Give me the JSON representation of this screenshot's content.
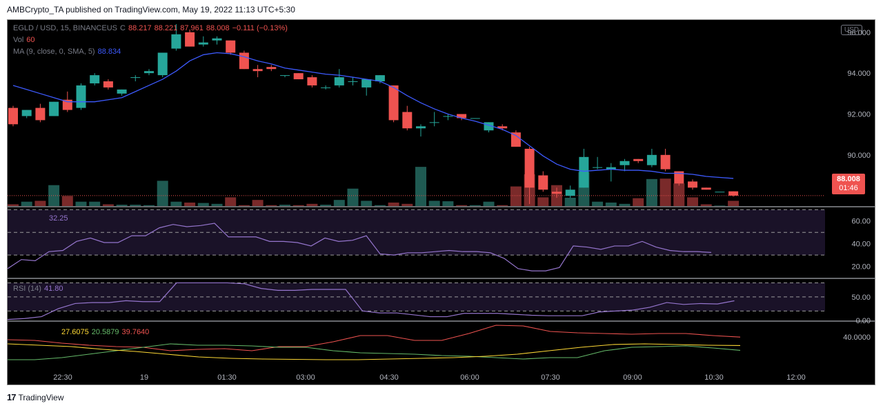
{
  "header": {
    "publisher_line": "AMBCrypto_TA published on TradingView.com, May 19, 2022 11:13 UTC+5:30"
  },
  "footer": {
    "brand": "TradingView",
    "logo_glyph": "17"
  },
  "colors": {
    "up": "#26a69a",
    "down": "#ef5350",
    "ma": "#3d5afe",
    "rsi": "#9575cd",
    "adx": "#fdd835",
    "plus_di": "#66bb6a",
    "minus_di": "#ef5350"
  },
  "main_pane": {
    "legend": {
      "symbol": "EGLD / USD, 15, BINANCEUS",
      "ohlc_label": "C",
      "open": "88.217",
      "high": "88.221",
      "low": "87.961",
      "close": "88.008",
      "change": "−0.111 (−0.13%)",
      "vol_label": "Vol",
      "vol_value": "60",
      "ma_label": "MA (9, close, 0, SMA, 5)",
      "ma_value": "88.834"
    },
    "currency_button": "USD",
    "price_ticks": [
      "96.000",
      "94.000",
      "92.000",
      "90.000"
    ],
    "last_price": "88.008",
    "countdown": "01:46"
  },
  "rsi_pane": {
    "legend_value": "32.25",
    "ticks": [
      "60.00",
      "40.00",
      "20.00"
    ]
  },
  "stoch_pane": {
    "legend": "RSI (14)",
    "legend_value": "41.80",
    "ticks": [
      "50.00",
      "0.00"
    ]
  },
  "dmi_pane": {
    "values": [
      "27.6075",
      "20.5879",
      "39.7640"
    ],
    "tick": "40.0000"
  },
  "time_axis": [
    "22:30",
    "19",
    "01:30",
    "03:00",
    "04:30",
    "06:00",
    "07:30",
    "09:00",
    "10:30",
    "12:00"
  ],
  "chart_data": {
    "type": "candlestick",
    "title": "EGLD / USD, 15, BINANCEUS",
    "ylim": [
      87.5,
      96.6
    ],
    "candles": [
      {
        "o": 92.3,
        "h": 92.4,
        "l": 91.4,
        "c": 91.5
      },
      {
        "o": 91.9,
        "h": 92.2,
        "l": 91.8,
        "c": 92.2
      },
      {
        "o": 92.3,
        "h": 92.5,
        "l": 91.6,
        "c": 91.7
      },
      {
        "o": 91.9,
        "h": 92.6,
        "l": 91.9,
        "c": 92.6
      },
      {
        "o": 92.7,
        "h": 93.1,
        "l": 92.1,
        "c": 92.2
      },
      {
        "o": 92.3,
        "h": 93.5,
        "l": 92.2,
        "c": 93.4
      },
      {
        "o": 93.5,
        "h": 94.0,
        "l": 93.4,
        "c": 93.9
      },
      {
        "o": 93.6,
        "h": 93.7,
        "l": 93.2,
        "c": 93.3
      },
      {
        "o": 93.0,
        "h": 93.2,
        "l": 92.9,
        "c": 93.2
      },
      {
        "o": 93.8,
        "h": 93.9,
        "l": 93.6,
        "c": 93.8
      },
      {
        "o": 94.0,
        "h": 94.2,
        "l": 93.9,
        "c": 94.1
      },
      {
        "o": 93.9,
        "h": 95.0,
        "l": 93.8,
        "c": 95.0
      },
      {
        "o": 95.2,
        "h": 96.4,
        "l": 95.1,
        "c": 95.9
      },
      {
        "o": 96.0,
        "h": 96.1,
        "l": 95.3,
        "c": 95.3
      },
      {
        "o": 95.4,
        "h": 95.8,
        "l": 95.3,
        "c": 95.5
      },
      {
        "o": 95.6,
        "h": 95.8,
        "l": 95.4,
        "c": 95.7
      },
      {
        "o": 95.6,
        "h": 95.6,
        "l": 94.9,
        "c": 95.0
      },
      {
        "o": 95.0,
        "h": 95.1,
        "l": 94.2,
        "c": 94.2
      },
      {
        "o": 94.2,
        "h": 94.4,
        "l": 93.8,
        "c": 94.1
      },
      {
        "o": 94.3,
        "h": 94.4,
        "l": 94.1,
        "c": 94.2
      },
      {
        "o": 93.9,
        "h": 93.9,
        "l": 93.8,
        "c": 93.9
      },
      {
        "o": 94.0,
        "h": 94.0,
        "l": 93.7,
        "c": 93.7
      },
      {
        "o": 93.8,
        "h": 93.9,
        "l": 93.3,
        "c": 93.4
      },
      {
        "o": 93.3,
        "h": 93.4,
        "l": 93.2,
        "c": 93.3
      },
      {
        "o": 93.4,
        "h": 94.2,
        "l": 93.3,
        "c": 93.8
      },
      {
        "o": 93.6,
        "h": 93.8,
        "l": 93.4,
        "c": 93.6
      },
      {
        "o": 93.3,
        "h": 93.7,
        "l": 92.9,
        "c": 93.7
      },
      {
        "o": 93.6,
        "h": 93.9,
        "l": 93.5,
        "c": 93.9
      },
      {
        "o": 93.4,
        "h": 93.4,
        "l": 91.6,
        "c": 91.7
      },
      {
        "o": 92.1,
        "h": 92.4,
        "l": 91.2,
        "c": 91.3
      },
      {
        "o": 91.3,
        "h": 91.5,
        "l": 90.9,
        "c": 91.4
      },
      {
        "o": 91.6,
        "h": 92.1,
        "l": 91.4,
        "c": 91.6
      },
      {
        "o": 91.9,
        "h": 92.0,
        "l": 91.7,
        "c": 91.9
      },
      {
        "o": 92.0,
        "h": 92.0,
        "l": 91.7,
        "c": 91.8
      },
      {
        "o": 91.8,
        "h": 91.8,
        "l": 91.8,
        "c": 91.8
      },
      {
        "o": 91.2,
        "h": 91.6,
        "l": 91.1,
        "c": 91.6
      },
      {
        "o": 91.4,
        "h": 91.5,
        "l": 91.2,
        "c": 91.3
      },
      {
        "o": 91.1,
        "h": 91.2,
        "l": 90.4,
        "c": 90.4
      },
      {
        "o": 90.3,
        "h": 90.4,
        "l": 87.6,
        "c": 88.4
      },
      {
        "o": 89.0,
        "h": 89.2,
        "l": 88.2,
        "c": 88.3
      },
      {
        "o": 88.2,
        "h": 88.4,
        "l": 87.9,
        "c": 88.1
      },
      {
        "o": 88.0,
        "h": 88.5,
        "l": 87.9,
        "c": 88.3
      },
      {
        "o": 88.4,
        "h": 90.3,
        "l": 88.4,
        "c": 89.9
      },
      {
        "o": 89.4,
        "h": 89.9,
        "l": 89.3,
        "c": 89.4
      },
      {
        "o": 89.3,
        "h": 89.6,
        "l": 88.7,
        "c": 89.4
      },
      {
        "o": 89.5,
        "h": 89.8,
        "l": 89.2,
        "c": 89.7
      },
      {
        "o": 89.8,
        "h": 89.8,
        "l": 89.6,
        "c": 89.7
      },
      {
        "o": 89.5,
        "h": 90.3,
        "l": 89.4,
        "c": 90.0
      },
      {
        "o": 90.0,
        "h": 90.3,
        "l": 89.2,
        "c": 89.3
      },
      {
        "o": 89.2,
        "h": 89.2,
        "l": 88.5,
        "c": 88.6
      },
      {
        "o": 88.7,
        "h": 88.8,
        "l": 88.3,
        "c": 88.4
      },
      {
        "o": 88.4,
        "h": 88.4,
        "l": 88.3,
        "c": 88.3
      },
      {
        "o": 88.2,
        "h": 88.2,
        "l": 88.2,
        "c": 88.2
      },
      {
        "o": 88.22,
        "h": 88.22,
        "l": 87.96,
        "c": 88.01
      }
    ],
    "volume": [
      0.4,
      1.0,
      1.2,
      4.8,
      2.3,
      1.0,
      1.0,
      0.4,
      0.3,
      0.3,
      0.2,
      5.8,
      1.0,
      0.8,
      0.7,
      0.5,
      2.0,
      0.2,
      1.4,
      0.2,
      0.3,
      0.2,
      0.5,
      0.3,
      1.4,
      4.0,
      1.2,
      0.2,
      0.8,
      0.5,
      9.0,
      1.2,
      1.1,
      0.2,
      0.2,
      1.0,
      0.2,
      4.5,
      7.3,
      2.0,
      4.8,
      1.9,
      7.8,
      1.0,
      0.8,
      0.5,
      1.8,
      6.2,
      6.3,
      5.2,
      2.0,
      0.4,
      0.1,
      1.2
    ],
    "ma": [
      93.4,
      93.2,
      93.0,
      92.8,
      92.6,
      92.6,
      92.6,
      92.7,
      92.8,
      93.1,
      93.4,
      93.7,
      94.1,
      94.6,
      94.9,
      95.0,
      94.95,
      94.8,
      94.6,
      94.45,
      94.25,
      94.15,
      94.05,
      93.95,
      93.9,
      93.8,
      93.7,
      93.6,
      93.3,
      92.9,
      92.55,
      92.25,
      92.0,
      91.8,
      91.65,
      91.45,
      91.25,
      90.95,
      90.45,
      89.95,
      89.55,
      89.3,
      89.2,
      89.25,
      89.3,
      89.25,
      89.25,
      89.2,
      89.1,
      89.1,
      89.05,
      88.95,
      88.9,
      88.85
    ],
    "rsi": [
      18,
      26,
      25,
      33,
      34,
      42,
      45,
      41,
      41,
      47,
      47,
      54,
      57,
      55,
      56,
      58,
      46,
      46,
      46,
      42,
      42,
      41,
      38,
      45,
      42,
      43,
      47,
      31,
      30,
      32,
      32,
      33,
      34,
      33,
      33,
      32,
      27,
      18,
      16,
      16,
      19,
      38,
      37,
      35,
      38,
      38,
      42,
      37,
      34,
      33,
      33,
      32.25
    ],
    "stoch_rsi": [
      2,
      4,
      8,
      25,
      36,
      38,
      38,
      42,
      40,
      40,
      80,
      80,
      80,
      80,
      78,
      68,
      64,
      64,
      66,
      66,
      66,
      20,
      16,
      16,
      12,
      8,
      8,
      15,
      15,
      15,
      13,
      11,
      10,
      10,
      10,
      18,
      20,
      22,
      28,
      38,
      34,
      36,
      35,
      41.8
    ],
    "dmi": {
      "adx": [
        30,
        28,
        26,
        22,
        19,
        15,
        11,
        9,
        8,
        7.5,
        7,
        7,
        8,
        9,
        10,
        12,
        15,
        20,
        25,
        29,
        30,
        29,
        28,
        27.6
      ],
      "plus_di": [
        7,
        7,
        10,
        15,
        20,
        25,
        30,
        28,
        28,
        27,
        25,
        25,
        20,
        17,
        16,
        15,
        13,
        12,
        10,
        8,
        10,
        10,
        20,
        25,
        26,
        27,
        24,
        20.6
      ],
      "minus_di": [
        36,
        35,
        31,
        28,
        26,
        25,
        20,
        22,
        23,
        20,
        26,
        26,
        33,
        42,
        42,
        35,
        35,
        45,
        57,
        56,
        48,
        46,
        45,
        44,
        45,
        45,
        42,
        39.8
      ]
    }
  }
}
